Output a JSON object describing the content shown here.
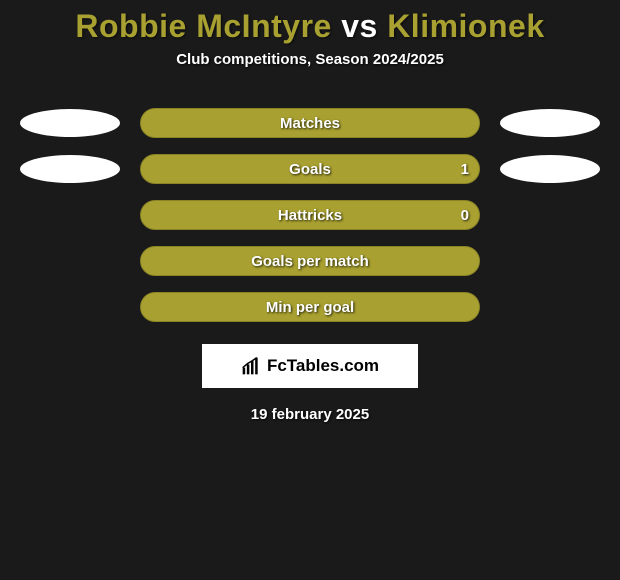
{
  "title": {
    "player1": "Robbie McIntyre",
    "vs": "vs",
    "player2": "Klimionek",
    "player1_color": "#a8a030",
    "vs_color": "#ffffff",
    "player2_color": "#a8a030"
  },
  "subtitle": "Club competitions, Season 2024/2025",
  "chart": {
    "bar_color": "#a8a030",
    "bar_border": "#8a8426",
    "ellipse_left_color": "#ffffff",
    "ellipse_right_color": "#ffffff",
    "rows": [
      {
        "label": "Matches",
        "value": null,
        "show_left_ellipse": true,
        "show_right_ellipse": true,
        "width_pct": 100
      },
      {
        "label": "Goals",
        "value": "1",
        "show_left_ellipse": true,
        "show_right_ellipse": true,
        "width_pct": 100
      },
      {
        "label": "Hattricks",
        "value": "0",
        "show_left_ellipse": false,
        "show_right_ellipse": false,
        "width_pct": 100
      },
      {
        "label": "Goals per match",
        "value": null,
        "show_left_ellipse": false,
        "show_right_ellipse": false,
        "width_pct": 100
      },
      {
        "label": "Min per goal",
        "value": null,
        "show_left_ellipse": false,
        "show_right_ellipse": false,
        "width_pct": 100
      }
    ],
    "label_color": "#ffffff",
    "label_fontsize": 15
  },
  "logo": {
    "text": "FcTables.com",
    "background": "#ffffff",
    "text_color": "#000000"
  },
  "date": "19 february 2025",
  "background_color": "#1a1a1a"
}
